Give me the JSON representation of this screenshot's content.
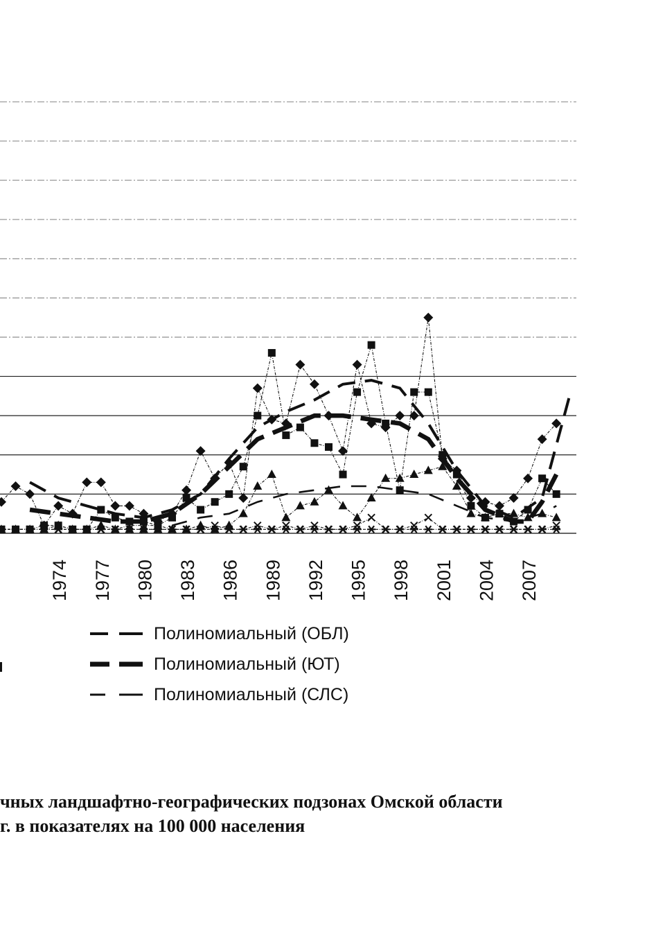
{
  "chart_data": {
    "type": "line",
    "title": "",
    "xlabel": "",
    "ylabel": "",
    "ylim": [
      0,
      11
    ],
    "xlim": [
      1970,
      2010.5
    ],
    "x_ticks": [
      "1974",
      "1977",
      "1980",
      "1983",
      "1986",
      "1989",
      "1992",
      "1995",
      "1998",
      "2001",
      "2004",
      "2007"
    ],
    "grid": true,
    "series": [
      {
        "marker": "diamond",
        "style": "thin-dash-dot",
        "color": "#111111",
        "points": [
          [
            1970,
            0.8
          ],
          [
            1971,
            1.2
          ],
          [
            1972,
            1.0
          ],
          [
            1973,
            0.2
          ],
          [
            1974,
            0.7
          ],
          [
            1975,
            0.5
          ],
          [
            1976,
            1.3
          ],
          [
            1977,
            1.3
          ],
          [
            1978,
            0.7
          ],
          [
            1979,
            0.7
          ],
          [
            1980,
            0.5
          ],
          [
            1981,
            0.3
          ],
          [
            1982,
            0.5
          ],
          [
            1983,
            1.1
          ],
          [
            1984,
            2.1
          ],
          [
            1985,
            1.4
          ],
          [
            1986,
            1.8
          ],
          [
            1987,
            0.9
          ],
          [
            1988,
            3.7
          ],
          [
            1989,
            2.9
          ],
          [
            1990,
            2.8
          ],
          [
            1991,
            4.3
          ],
          [
            1992,
            3.8
          ],
          [
            1993,
            3.0
          ],
          [
            1994,
            2.1
          ],
          [
            1995,
            4.3
          ],
          [
            1996,
            2.8
          ],
          [
            1997,
            2.7
          ],
          [
            1998,
            3.0
          ],
          [
            1999,
            3.0
          ],
          [
            2000,
            5.5
          ],
          [
            2001,
            1.9
          ],
          [
            2002,
            1.6
          ],
          [
            2003,
            0.9
          ],
          [
            2004,
            0.8
          ],
          [
            2005,
            0.7
          ],
          [
            2006,
            0.9
          ],
          [
            2007,
            1.4
          ],
          [
            2008,
            2.4
          ],
          [
            2009,
            2.8
          ]
        ]
      },
      {
        "marker": "square",
        "style": "thin-dash-dot",
        "color": "#111111",
        "points": [
          [
            1970,
            0.1
          ],
          [
            1971,
            0.1
          ],
          [
            1972,
            0.1
          ],
          [
            1973,
            0.2
          ],
          [
            1974,
            0.2
          ],
          [
            1975,
            0.1
          ],
          [
            1976,
            0.1
          ],
          [
            1977,
            0.6
          ],
          [
            1978,
            0.4
          ],
          [
            1979,
            0.3
          ],
          [
            1980,
            0.3
          ],
          [
            1981,
            0.2
          ],
          [
            1982,
            0.4
          ],
          [
            1983,
            0.9
          ],
          [
            1984,
            0.6
          ],
          [
            1985,
            0.8
          ],
          [
            1986,
            1.0
          ],
          [
            1987,
            1.7
          ],
          [
            1988,
            3.0
          ],
          [
            1989,
            4.6
          ],
          [
            1990,
            2.5
          ],
          [
            1991,
            2.7
          ],
          [
            1992,
            2.3
          ],
          [
            1993,
            2.2
          ],
          [
            1994,
            1.5
          ],
          [
            1995,
            3.6
          ],
          [
            1996,
            4.8
          ],
          [
            1997,
            2.8
          ],
          [
            1998,
            1.1
          ],
          [
            1999,
            3.6
          ],
          [
            2000,
            3.6
          ],
          [
            2001,
            2.0
          ],
          [
            2002,
            1.5
          ],
          [
            2003,
            0.7
          ],
          [
            2004,
            0.4
          ],
          [
            2005,
            0.5
          ],
          [
            2006,
            0.3
          ],
          [
            2007,
            0.6
          ],
          [
            2008,
            1.4
          ],
          [
            2009,
            1.0
          ]
        ]
      },
      {
        "marker": "triangle",
        "style": "thin-dash-dot",
        "color": "#111111",
        "points": [
          [
            1970,
            0.1
          ],
          [
            1971,
            0.1
          ],
          [
            1972,
            0.1
          ],
          [
            1973,
            0.1
          ],
          [
            1974,
            0.2
          ],
          [
            1975,
            0.1
          ],
          [
            1976,
            0.1
          ],
          [
            1977,
            0.2
          ],
          [
            1978,
            0.1
          ],
          [
            1979,
            0.1
          ],
          [
            1980,
            0.1
          ],
          [
            1981,
            0.1
          ],
          [
            1982,
            0.1
          ],
          [
            1983,
            0.1
          ],
          [
            1984,
            0.2
          ],
          [
            1985,
            0.1
          ],
          [
            1986,
            0.2
          ],
          [
            1987,
            0.5
          ],
          [
            1988,
            1.2
          ],
          [
            1989,
            1.5
          ],
          [
            1990,
            0.4
          ],
          [
            1991,
            0.7
          ],
          [
            1992,
            0.8
          ],
          [
            1993,
            1.1
          ],
          [
            1994,
            0.7
          ],
          [
            1995,
            0.4
          ],
          [
            1996,
            0.9
          ],
          [
            1997,
            1.4
          ],
          [
            1998,
            1.4
          ],
          [
            1999,
            1.5
          ],
          [
            2000,
            1.6
          ],
          [
            2001,
            1.7
          ],
          [
            2002,
            1.2
          ],
          [
            2003,
            0.5
          ],
          [
            2004,
            0.4
          ],
          [
            2005,
            0.5
          ],
          [
            2006,
            0.5
          ],
          [
            2007,
            0.4
          ],
          [
            2008,
            0.5
          ],
          [
            2009,
            0.4
          ]
        ]
      },
      {
        "marker": "x",
        "style": "thin-dash-dot",
        "color": "#111111",
        "points": [
          [
            1970,
            0.1
          ],
          [
            1971,
            0.1
          ],
          [
            1972,
            0.1
          ],
          [
            1973,
            0.1
          ],
          [
            1974,
            0.1
          ],
          [
            1975,
            0.1
          ],
          [
            1976,
            0.1
          ],
          [
            1977,
            0.1
          ],
          [
            1978,
            0.1
          ],
          [
            1979,
            0.2
          ],
          [
            1980,
            0.2
          ],
          [
            1981,
            0.2
          ],
          [
            1982,
            0.1
          ],
          [
            1983,
            0.1
          ],
          [
            1984,
            0.1
          ],
          [
            1985,
            0.2
          ],
          [
            1986,
            0.1
          ],
          [
            1987,
            0.1
          ],
          [
            1988,
            0.2
          ],
          [
            1989,
            0.1
          ],
          [
            1990,
            0.2
          ],
          [
            1991,
            0.1
          ],
          [
            1992,
            0.2
          ],
          [
            1993,
            0.1
          ],
          [
            1994,
            0.1
          ],
          [
            1995,
            0.2
          ],
          [
            1996,
            0.4
          ],
          [
            1997,
            0.1
          ],
          [
            1998,
            0.1
          ],
          [
            1999,
            0.2
          ],
          [
            2000,
            0.4
          ],
          [
            2001,
            0.1
          ],
          [
            2002,
            0.1
          ],
          [
            2003,
            0.1
          ],
          [
            2004,
            0.1
          ],
          [
            2005,
            0.1
          ],
          [
            2006,
            0.1
          ],
          [
            2007,
            0.1
          ],
          [
            2008,
            0.1
          ],
          [
            2009,
            0.2
          ]
        ]
      },
      {
        "marker": "asterisk",
        "style": "thin-dash-dot",
        "color": "#111111",
        "points": [
          [
            1970,
            0.1
          ],
          [
            1971,
            0.1
          ],
          [
            1972,
            0.1
          ],
          [
            1973,
            0.1
          ],
          [
            1974,
            0.1
          ],
          [
            1975,
            0.1
          ],
          [
            1976,
            0.1
          ],
          [
            1977,
            0.1
          ],
          [
            1978,
            0.1
          ],
          [
            1979,
            0.1
          ],
          [
            1980,
            0.1
          ],
          [
            1981,
            0.1
          ],
          [
            1982,
            0.1
          ],
          [
            1983,
            0.1
          ],
          [
            1984,
            0.1
          ],
          [
            1985,
            0.1
          ],
          [
            1986,
            0.1
          ],
          [
            1987,
            0.1
          ],
          [
            1988,
            0.1
          ],
          [
            1989,
            0.1
          ],
          [
            1990,
            0.1
          ],
          [
            1991,
            0.1
          ],
          [
            1992,
            0.1
          ],
          [
            1993,
            0.1
          ],
          [
            1994,
            0.1
          ],
          [
            1995,
            0.1
          ],
          [
            1996,
            0.1
          ],
          [
            1997,
            0.1
          ],
          [
            1998,
            0.1
          ],
          [
            1999,
            0.1
          ],
          [
            2000,
            0.1
          ],
          [
            2001,
            0.1
          ],
          [
            2002,
            0.1
          ],
          [
            2003,
            0.1
          ],
          [
            2004,
            0.1
          ],
          [
            2005,
            0.1
          ],
          [
            2006,
            0.1
          ],
          [
            2007,
            0.1
          ],
          [
            2008,
            0.1
          ],
          [
            2009,
            0.1
          ]
        ]
      }
    ],
    "trendlines": [
      {
        "name": "Полиномиальный (ОБЛ)",
        "style": "dash-medium",
        "points": [
          [
            1972,
            1.3
          ],
          [
            1974,
            0.9
          ],
          [
            1976,
            0.7
          ],
          [
            1978,
            0.5
          ],
          [
            1980,
            0.4
          ],
          [
            1982,
            0.6
          ],
          [
            1984,
            1.0
          ],
          [
            1986,
            1.9
          ],
          [
            1988,
            2.7
          ],
          [
            1990,
            3.1
          ],
          [
            1992,
            3.4
          ],
          [
            1994,
            3.8
          ],
          [
            1996,
            3.9
          ],
          [
            1998,
            3.7
          ],
          [
            2000,
            2.8
          ],
          [
            2002,
            1.6
          ],
          [
            2004,
            0.7
          ],
          [
            2006,
            0.4
          ],
          [
            2008,
            0.9
          ],
          [
            2010,
            3.6
          ]
        ]
      },
      {
        "name": "Полиномиальный (ЮТ)",
        "style": "dash-heavy",
        "points": [
          [
            1972,
            0.6
          ],
          [
            1974,
            0.5
          ],
          [
            1976,
            0.4
          ],
          [
            1978,
            0.3
          ],
          [
            1980,
            0.3
          ],
          [
            1982,
            0.5
          ],
          [
            1984,
            1.0
          ],
          [
            1986,
            1.7
          ],
          [
            1988,
            2.4
          ],
          [
            1990,
            2.7
          ],
          [
            1992,
            3.0
          ],
          [
            1994,
            3.0
          ],
          [
            1996,
            2.9
          ],
          [
            1998,
            2.8
          ],
          [
            2000,
            2.4
          ],
          [
            2002,
            1.4
          ],
          [
            2004,
            0.6
          ],
          [
            2006,
            0.3
          ],
          [
            2007,
            0.3
          ],
          [
            2008,
            0.8
          ],
          [
            2009,
            1.5
          ]
        ]
      },
      {
        "name": "Полиномиальный (СЛС)",
        "style": "dash-light",
        "points": [
          [
            1982,
            0.2
          ],
          [
            1984,
            0.4
          ],
          [
            1986,
            0.5
          ],
          [
            1988,
            0.8
          ],
          [
            1990,
            1.0
          ],
          [
            1992,
            1.1
          ],
          [
            1994,
            1.2
          ],
          [
            1996,
            1.2
          ],
          [
            1998,
            1.1
          ],
          [
            2000,
            1.0
          ],
          [
            2002,
            0.7
          ],
          [
            2004,
            0.4
          ],
          [
            2006,
            0.3
          ],
          [
            2008,
            0.5
          ],
          [
            2009,
            0.7
          ]
        ]
      }
    ],
    "legend_placement": "bottom"
  },
  "legend": {
    "items": [
      {
        "label": "Полиномиальный (ОБЛ)"
      },
      {
        "label": "Полиномиальный (ЮТ)"
      },
      {
        "label": "Полиномиальный (СЛС)"
      }
    ]
  },
  "caption": {
    "line1": "чных ландшафтно-географических подзонах Омской области",
    "line2": "г. в показателях на 100 000 населения"
  }
}
